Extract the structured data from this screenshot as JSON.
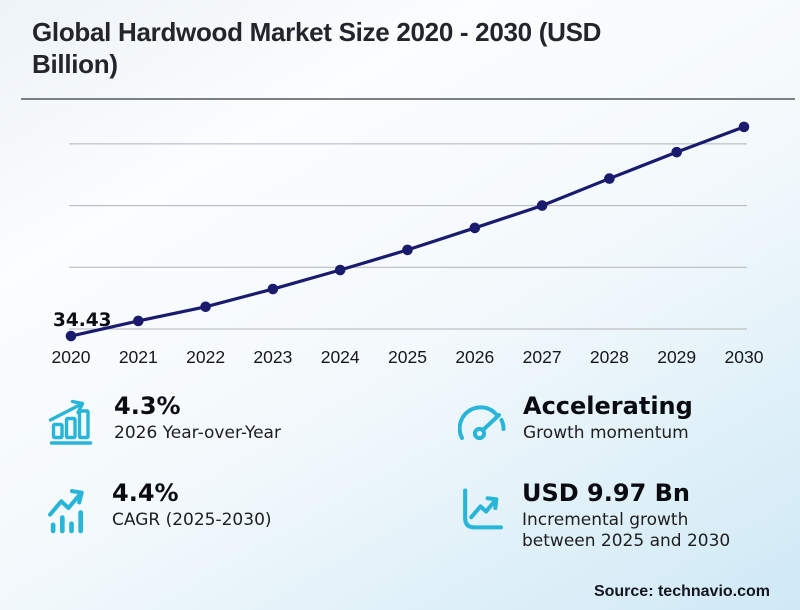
{
  "title": {
    "full": "Global Hardwood Market Size 2020 - 2030 (USD Billion)",
    "line1": "Global Hardwood Market Size 2020 - 2030 (USD",
    "line2": "Billion)"
  },
  "chart_data": {
    "type": "line",
    "title": "Global Hardwood Market Size 2020 - 2030 (USD Billion)",
    "x": [
      2020,
      2021,
      2022,
      2023,
      2024,
      2025,
      2026,
      2027,
      2028,
      2029,
      2030
    ],
    "values": [
      34.43,
      35.65,
      36.8,
      38.24,
      39.78,
      41.41,
      43.19,
      45.0,
      47.19,
      49.33,
      51.38
    ],
    "first_point_label": "34.43",
    "ylabel": "",
    "xlabel": "",
    "ylim": [
      33.5,
      52.5
    ],
    "gridline_values": [
      35,
      40,
      45,
      50
    ],
    "grid": "horizontal-only, no y-axis tick labels",
    "legend": "none",
    "marker": "filled-circle"
  },
  "stats": [
    {
      "icon": "bar-chart-rising-icon",
      "value": "4.3%",
      "label": "2026 Year-over-Year"
    },
    {
      "icon": "trend-arrow-bars-icon",
      "value": "4.4%",
      "label": "CAGR (2025-2030)"
    },
    {
      "icon": "speedometer-icon",
      "value": "Accelerating",
      "label": "Growth momentum"
    },
    {
      "icon": "boxed-line-chart-icon",
      "value": "USD 9.97 Bn",
      "label": "Incremental growth between 2025 and 2030"
    }
  ],
  "source": "Source: technavio.com",
  "colors": {
    "accent_cyan": "#28b5d8",
    "line_navy": "#1b1b6e",
    "gridline": "#b3b3b3",
    "title_text": "#24242c"
  }
}
